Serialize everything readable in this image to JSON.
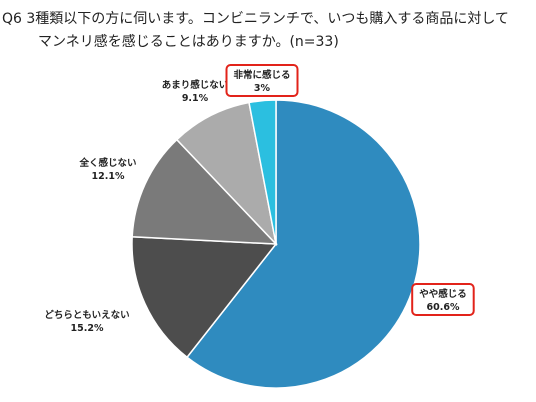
{
  "title": {
    "line1": "Q6 3種類以下の方に伺います。コンビニランチで、いつも購入する商品に対して",
    "line2": "マンネリ感を感じることはありますか。(n=33)"
  },
  "chart_data": {
    "type": "pie",
    "title": "Q6 3種類以下の方に伺います。コンビニランチで、いつも購入する商品に対して マンネリ感を感じることはありますか。(n=33)",
    "slices": [
      {
        "label": "やや感じる",
        "value": 60.6,
        "value_label": "60.6%",
        "color": "#2f8bbf",
        "highlighted": true
      },
      {
        "label": "どちらともいえない",
        "value": 15.2,
        "value_label": "15.2%",
        "color": "#4d4d4d",
        "highlighted": false
      },
      {
        "label": "全く感じない",
        "value": 12.1,
        "value_label": "12.1%",
        "color": "#7a7a7a",
        "highlighted": false
      },
      {
        "label": "あまり感じない",
        "value": 9.1,
        "value_label": "9.1%",
        "color": "#ababab",
        "highlighted": false
      },
      {
        "label": "非常に感じる",
        "value": 3,
        "value_label": "3%",
        "color": "#2bbfe0",
        "highlighted": true
      }
    ],
    "start_angle": "12 o'clock",
    "direction": "clockwise",
    "highlight_color": "#e2231a"
  }
}
